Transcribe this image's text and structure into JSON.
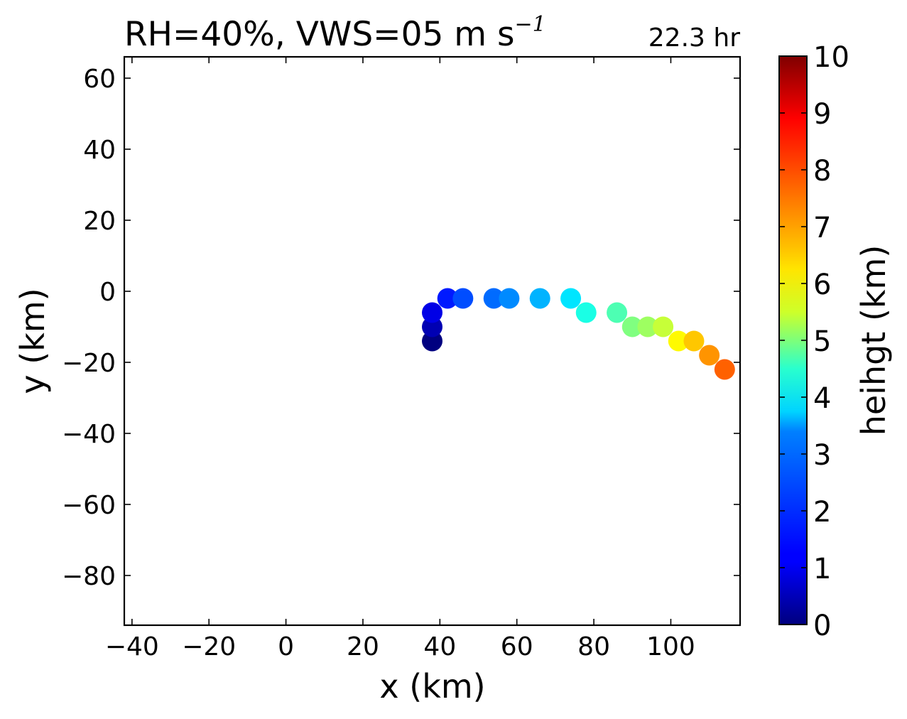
{
  "chart_data": {
    "type": "scatter",
    "title": "RH=40%, VWS=05 m s",
    "title_superscript": "−1",
    "annotation": "22.3 hr",
    "annotation_color": "#0000ff",
    "xlabel": "x (km)",
    "ylabel": "y (km)",
    "xlim": [
      -42,
      118
    ],
    "ylim": [
      -94,
      66
    ],
    "xticks": [
      -40,
      -20,
      0,
      20,
      40,
      60,
      80,
      100
    ],
    "yticks": [
      60,
      40,
      20,
      0,
      -20,
      -40,
      -60,
      -80
    ],
    "xtick_labels": [
      "−40",
      "−20",
      "0",
      "20",
      "40",
      "60",
      "80",
      "100"
    ],
    "ytick_labels": [
      "60",
      "40",
      "20",
      "0",
      "−20",
      "−40",
      "−60",
      "−80"
    ],
    "colorbar": {
      "label": "heihgt (km)",
      "colormap": "jet",
      "range": [
        0,
        10
      ],
      "ticks": [
        0,
        1,
        2,
        3,
        4,
        5,
        6,
        7,
        8,
        9,
        10
      ],
      "tick_labels": [
        "0",
        "1",
        "2",
        "3",
        "4",
        "5",
        "6",
        "7",
        "8",
        "9",
        "10"
      ]
    },
    "points": [
      {
        "x": 38,
        "y": -14,
        "height": 0.0
      },
      {
        "x": 38,
        "y": -10,
        "height": 0.5
      },
      {
        "x": 38,
        "y": -6,
        "height": 1.0
      },
      {
        "x": 42,
        "y": -2,
        "height": 1.5
      },
      {
        "x": 46,
        "y": -2,
        "height": 2.0
      },
      {
        "x": 54,
        "y": -2,
        "height": 2.3
      },
      {
        "x": 58,
        "y": -2,
        "height": 2.6
      },
      {
        "x": 66,
        "y": -2,
        "height": 3.0
      },
      {
        "x": 74,
        "y": -2,
        "height": 3.5
      },
      {
        "x": 78,
        "y": -6,
        "height": 4.0
      },
      {
        "x": 86,
        "y": -6,
        "height": 4.5
      },
      {
        "x": 90,
        "y": -10,
        "height": 5.0
      },
      {
        "x": 94,
        "y": -10,
        "height": 5.3
      },
      {
        "x": 98,
        "y": -10,
        "height": 5.7
      },
      {
        "x": 102,
        "y": -14,
        "height": 6.3
      },
      {
        "x": 106,
        "y": -14,
        "height": 6.8
      },
      {
        "x": 110,
        "y": -18,
        "height": 7.3
      },
      {
        "x": 114,
        "y": -22,
        "height": 7.8
      }
    ]
  }
}
